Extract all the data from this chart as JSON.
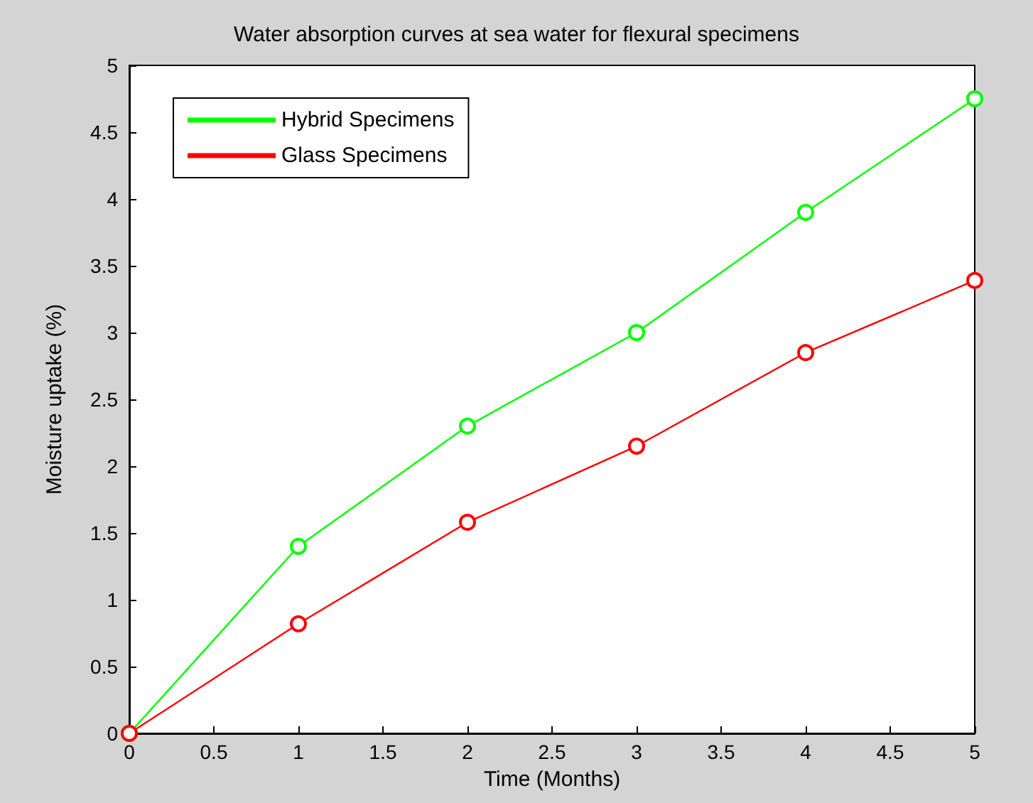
{
  "chart_data": {
    "type": "line",
    "title": "Water absorption curves at sea water for flexural specimens",
    "xlabel": "Time (Months)",
    "ylabel": "Moisture uptake (%)",
    "x": [
      0,
      1,
      2,
      3,
      4,
      5
    ],
    "series": [
      {
        "name": "Hybrid Specimens",
        "color": "#00ff00",
        "values": [
          0,
          1.4,
          2.3,
          3.0,
          3.9,
          4.75
        ]
      },
      {
        "name": "Glass Specimens",
        "color": "#ff0000",
        "values": [
          0,
          0.82,
          1.58,
          2.15,
          2.85,
          3.39
        ]
      }
    ],
    "xlim": [
      0,
      5
    ],
    "xticks": [
      0,
      0.5,
      1,
      1.5,
      2,
      2.5,
      3,
      3.5,
      4,
      4.5,
      5
    ],
    "ylim": [
      0,
      5
    ],
    "yticks": [
      0,
      0.5,
      1,
      1.5,
      2,
      2.5,
      3,
      3.5,
      4,
      4.5,
      5
    ],
    "legend": "top left",
    "marker": "circle",
    "line_style": "solid"
  }
}
